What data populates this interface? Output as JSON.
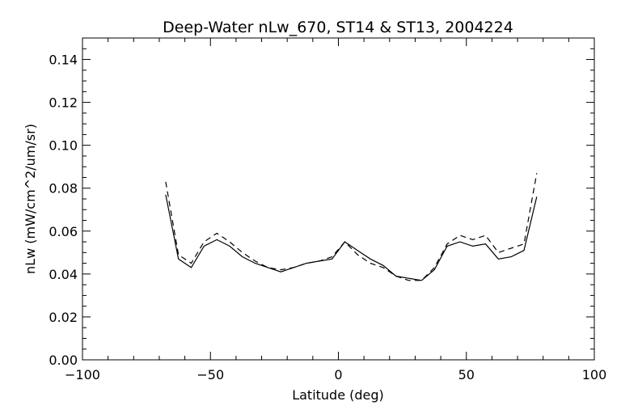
{
  "chart_data": {
    "type": "line",
    "title": "Deep-Water nLw_670, ST14 & ST13, 2004224",
    "xlabel": "Latitude (deg)",
    "ylabel": "nLw (mW/cm^2/um/sr)",
    "xlim": [
      -100,
      100
    ],
    "ylim": [
      0.0,
      0.15
    ],
    "x_ticks": [
      -100,
      -50,
      0,
      50,
      100
    ],
    "x_tick_labels": [
      "−100",
      "−50",
      "0",
      "50",
      "100"
    ],
    "y_ticks": [
      0.0,
      0.02,
      0.04,
      0.06,
      0.08,
      0.1,
      0.12,
      0.14
    ],
    "y_tick_labels": [
      "0.00",
      "0.02",
      "0.04",
      "0.06",
      "0.08",
      "0.10",
      "0.12",
      "0.14"
    ],
    "grid": false,
    "colors": {
      "line": "#000000",
      "background": "#ffffff"
    },
    "series": [
      {
        "style": "solid",
        "x": [
          -67.5,
          -62.5,
          -57.5,
          -52.5,
          -47.5,
          -42.5,
          -37.5,
          -32.5,
          -27.5,
          -22.5,
          -17.5,
          -12.5,
          -7.5,
          -2.5,
          2.5,
          7.5,
          12.5,
          17.5,
          22.5,
          27.5,
          32.5,
          37.5,
          42.5,
          47.5,
          52.5,
          57.5,
          62.5,
          67.5,
          72.5,
          77.5
        ],
        "values": [
          0.077,
          0.047,
          0.043,
          0.053,
          0.056,
          0.053,
          0.048,
          0.045,
          0.043,
          0.041,
          0.043,
          0.045,
          0.046,
          0.047,
          0.055,
          0.051,
          0.047,
          0.044,
          0.039,
          0.038,
          0.037,
          0.042,
          0.053,
          0.055,
          0.053,
          0.054,
          0.047,
          0.048,
          0.051,
          0.076
        ]
      },
      {
        "style": "dashed",
        "x": [
          -67.5,
          -62.5,
          -57.5,
          -52.5,
          -47.5,
          -42.5,
          -37.5,
          -32.5,
          -27.5,
          -22.5,
          -17.5,
          -12.5,
          -7.5,
          -2.5,
          2.5,
          7.5,
          12.5,
          17.5,
          22.5,
          27.5,
          32.5,
          37.5,
          42.5,
          47.5,
          52.5,
          57.5,
          62.5,
          67.5,
          72.5,
          77.5
        ],
        "values": [
          0.083,
          0.049,
          0.045,
          0.055,
          0.059,
          0.055,
          0.05,
          0.046,
          0.043,
          0.042,
          0.043,
          0.045,
          0.046,
          0.048,
          0.055,
          0.049,
          0.045,
          0.043,
          0.039,
          0.037,
          0.037,
          0.043,
          0.054,
          0.058,
          0.056,
          0.058,
          0.05,
          0.052,
          0.054,
          0.087
        ]
      }
    ]
  }
}
